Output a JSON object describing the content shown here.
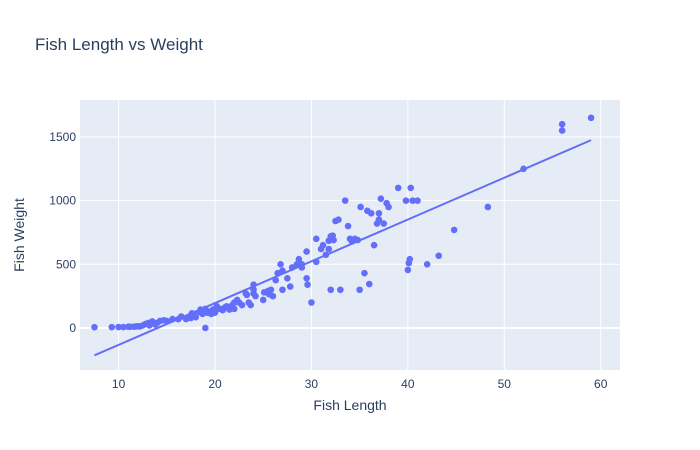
{
  "chart_data": {
    "type": "scatter",
    "title": "Fish Length vs Weight",
    "xlabel": "Fish Length",
    "ylabel": "Fish Weight",
    "xlim": [
      6,
      62
    ],
    "ylim": [
      -330,
      1790
    ],
    "xticks": [
      10,
      20,
      30,
      40,
      50,
      60
    ],
    "yticks": [
      0,
      500,
      1000,
      1500
    ],
    "grid": true,
    "legend": "none",
    "colors": {
      "marker": "#636efa",
      "trend": "#636efa",
      "plot_bg": "#e5ecf6",
      "grid": "#ffffff",
      "text": "#2a3f5f"
    },
    "series": [
      {
        "values": [
          [
            7.5,
            5.9
          ],
          [
            9.3,
            6.7
          ],
          [
            10.0,
            7.5
          ],
          [
            10.5,
            7.0
          ],
          [
            11.0,
            9.7
          ],
          [
            11.2,
            9.8
          ],
          [
            11.6,
            10.0
          ],
          [
            11.8,
            12.2
          ],
          [
            12.0,
            13.4
          ],
          [
            12.2,
            12.2
          ],
          [
            12.5,
            19.7
          ],
          [
            12.8,
            32
          ],
          [
            13.1,
            40
          ],
          [
            13.2,
            19.9
          ],
          [
            13.5,
            51.5
          ],
          [
            13.8,
            27
          ],
          [
            14.0,
            40
          ],
          [
            14.3,
            55
          ],
          [
            14.7,
            60
          ],
          [
            15.0,
            55
          ],
          [
            15.6,
            70
          ],
          [
            16.2,
            69
          ],
          [
            16.5,
            90
          ],
          [
            17.0,
            70
          ],
          [
            17.2,
            85
          ],
          [
            17.5,
            78
          ],
          [
            17.6,
            115
          ],
          [
            17.8,
            110
          ],
          [
            18.0,
            85
          ],
          [
            18.4,
            125
          ],
          [
            18.5,
            145
          ],
          [
            18.7,
            110
          ],
          [
            18.9,
            130
          ],
          [
            19.0,
            150
          ],
          [
            19.0,
            0
          ],
          [
            19.2,
            120
          ],
          [
            19.5,
            130
          ],
          [
            19.6,
            110
          ],
          [
            19.8,
            145
          ],
          [
            20.0,
            120
          ],
          [
            20.1,
            150
          ],
          [
            20.2,
            170
          ],
          [
            20.5,
            150
          ],
          [
            20.8,
            140
          ],
          [
            21.0,
            160
          ],
          [
            21.2,
            170
          ],
          [
            21.5,
            145
          ],
          [
            21.8,
            180
          ],
          [
            22.0,
            150
          ],
          [
            22.0,
            200
          ],
          [
            22.3,
            220
          ],
          [
            22.5,
            200
          ],
          [
            22.8,
            180
          ],
          [
            23.2,
            270
          ],
          [
            23.3,
            260
          ],
          [
            23.5,
            200
          ],
          [
            23.7,
            180
          ],
          [
            24.0,
            270
          ],
          [
            24.0,
            300
          ],
          [
            24.0,
            340
          ],
          [
            24.2,
            250
          ],
          [
            25.0,
            220
          ],
          [
            25.1,
            280
          ],
          [
            25.5,
            290
          ],
          [
            25.6,
            265
          ],
          [
            25.8,
            300
          ],
          [
            26.0,
            250
          ],
          [
            26.3,
            375
          ],
          [
            26.5,
            430
          ],
          [
            26.8,
            500
          ],
          [
            27.0,
            450
          ],
          [
            27.0,
            300
          ],
          [
            27.5,
            390
          ],
          [
            27.8,
            325
          ],
          [
            28.0,
            475
          ],
          [
            28.5,
            500
          ],
          [
            28.7,
            540
          ],
          [
            29.0,
            500
          ],
          [
            29.0,
            475
          ],
          [
            29.5,
            600
          ],
          [
            29.5,
            390
          ],
          [
            29.6,
            340
          ],
          [
            30.0,
            200
          ],
          [
            30.5,
            700
          ],
          [
            30.5,
            520
          ],
          [
            31.0,
            620
          ],
          [
            31.2,
            650
          ],
          [
            31.5,
            575
          ],
          [
            31.8,
            685
          ],
          [
            31.8,
            620
          ],
          [
            32.0,
            300
          ],
          [
            32.0,
            700
          ],
          [
            32.0,
            720
          ],
          [
            32.2,
            725
          ],
          [
            32.3,
            690
          ],
          [
            32.5,
            840
          ],
          [
            32.8,
            850
          ],
          [
            33.0,
            300
          ],
          [
            33.5,
            1000
          ],
          [
            33.8,
            800
          ],
          [
            34.0,
            700
          ],
          [
            34.2,
            680
          ],
          [
            34.5,
            700
          ],
          [
            34.8,
            690
          ],
          [
            35.0,
            300
          ],
          [
            35.1,
            950
          ],
          [
            35.5,
            430
          ],
          [
            35.8,
            920
          ],
          [
            36.0,
            345
          ],
          [
            36.2,
            900
          ],
          [
            36.5,
            650
          ],
          [
            36.8,
            820
          ],
          [
            37.0,
            850
          ],
          [
            37.0,
            900
          ],
          [
            37.2,
            1015
          ],
          [
            37.5,
            820
          ],
          [
            37.8,
            980
          ],
          [
            38.0,
            950
          ],
          [
            39.0,
            1100
          ],
          [
            39.8,
            1000
          ],
          [
            40.0,
            456
          ],
          [
            40.1,
            510
          ],
          [
            40.2,
            540
          ],
          [
            40.3,
            1100
          ],
          [
            40.5,
            1000
          ],
          [
            41.0,
            1000
          ],
          [
            42.0,
            500
          ],
          [
            43.2,
            567
          ],
          [
            44.8,
            770
          ],
          [
            48.3,
            950
          ],
          [
            52.0,
            1250
          ],
          [
            56.0,
            1550
          ],
          [
            56.0,
            1600
          ],
          [
            59.0,
            1650
          ]
        ]
      }
    ],
    "trendline": {
      "x": [
        7.5,
        59.0
      ],
      "y": [
        -215,
        1475
      ]
    }
  }
}
